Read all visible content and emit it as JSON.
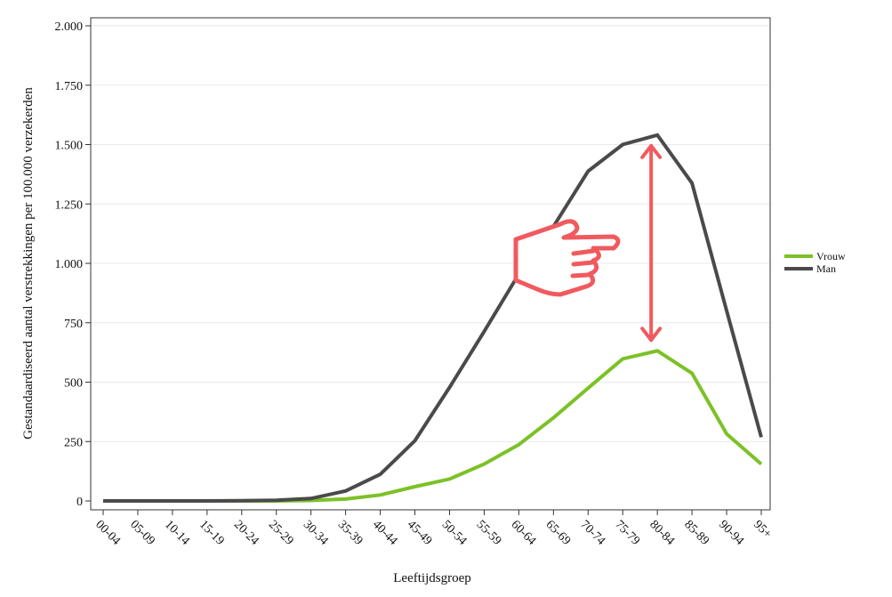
{
  "chart_data": {
    "type": "line",
    "title": "",
    "xlabel": "Leeftijdsgroep",
    "ylabel": "Gestandaardiseerd aantal verstrekkingen per 100.000 verzekerden",
    "categories": [
      "00-04",
      "05-09",
      "10-14",
      "15-19",
      "20-24",
      "25-29",
      "30-34",
      "35-39",
      "40-44",
      "45-49",
      "50-54",
      "55-59",
      "60-64",
      "65-69",
      "70-74",
      "75-79",
      "80-84",
      "85-89",
      "90-94",
      "95+"
    ],
    "ylim": [
      0,
      2000
    ],
    "yticks": [
      {
        "value": 0,
        "label": "0"
      },
      {
        "value": 250,
        "label": "250"
      },
      {
        "value": 500,
        "label": "500"
      },
      {
        "value": 750,
        "label": "750"
      },
      {
        "value": 1000,
        "label": "1.000"
      },
      {
        "value": 1250,
        "label": "1.250"
      },
      {
        "value": 1500,
        "label": "1.500"
      },
      {
        "value": 1750,
        "label": "1.750"
      },
      {
        "value": 2000,
        "label": "2.000"
      }
    ],
    "grid": true,
    "legend": "right",
    "series": [
      {
        "name": "Vrouw",
        "color": "#7cc127",
        "values": [
          0,
          0,
          0,
          0,
          0,
          0,
          2,
          8,
          25,
          60,
          92,
          155,
          237,
          350,
          475,
          598,
          632,
          537,
          282,
          155
        ]
      },
      {
        "name": "Man",
        "color": "#4a4a4a",
        "values": [
          0,
          0,
          0,
          0,
          1,
          3,
          10,
          42,
          112,
          253,
          478,
          713,
          955,
          1155,
          1388,
          1500,
          1540,
          1338,
          800,
          268
        ]
      }
    ],
    "annotations": [
      {
        "type": "double-arrow",
        "between_series": [
          "Man",
          "Vrouw"
        ],
        "at_category": "80-84",
        "color": "#f05a5f"
      },
      {
        "type": "pointing-hand-icon",
        "color": "#f05a5f"
      }
    ]
  }
}
